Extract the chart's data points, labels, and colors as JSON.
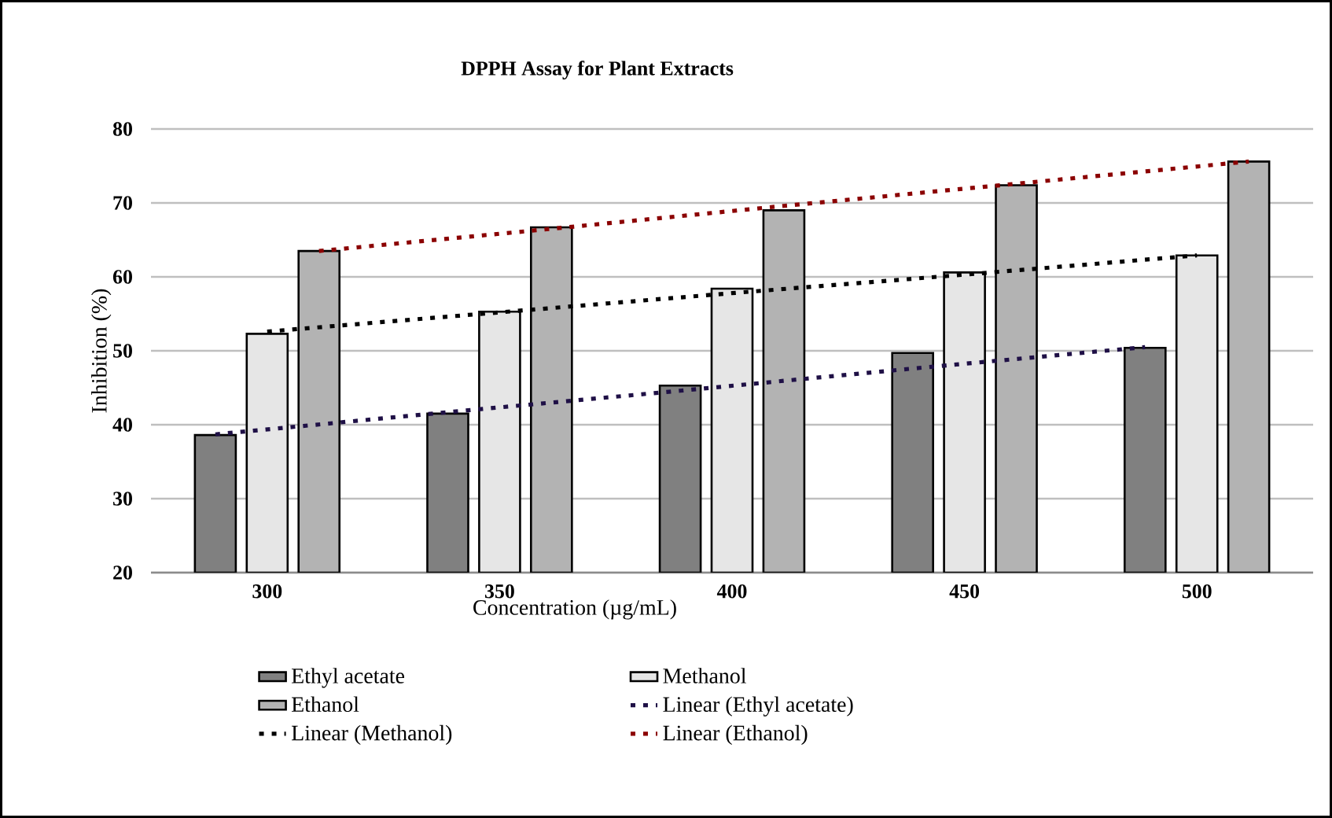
{
  "chart_data": {
    "type": "bar",
    "title": "DPPH  Assay for Plant Extracts",
    "xlabel": "Concentration (µg/mL)",
    "ylabel": "Inhibition (%)",
    "categories": [
      "300",
      "350",
      "400",
      "450",
      "500"
    ],
    "series": [
      {
        "name": "Ethyl acetate",
        "color": "#808080",
        "values": [
          38.6,
          41.5,
          45.3,
          49.7,
          50.4
        ]
      },
      {
        "name": "Methanol",
        "color": "#e6e6e6",
        "values": [
          52.3,
          55.3,
          58.4,
          60.6,
          62.9
        ]
      },
      {
        "name": "Ethanol",
        "color": "#b3b3b3",
        "values": [
          63.5,
          66.7,
          69.0,
          72.4,
          75.6
        ]
      },
      {
        "name": "Linear (Ethyl acetate)",
        "type": "line",
        "line_style": "dotted",
        "color": "#1f1046",
        "values": [
          38.7,
          41.7,
          44.6,
          47.6,
          50.5
        ]
      },
      {
        "name": "Linear (Methanol)",
        "type": "line",
        "line_style": "dotted",
        "color": "#000000",
        "values": [
          52.6,
          55.2,
          57.8,
          60.3,
          62.9
        ]
      },
      {
        "name": "Linear (Ethanol)",
        "type": "line",
        "line_style": "dotted",
        "color": "#8b0000",
        "values": [
          63.5,
          66.5,
          69.6,
          72.6,
          75.6
        ]
      }
    ],
    "ylim": [
      20,
      80
    ],
    "yticks": [
      20,
      30,
      40,
      50,
      60,
      70,
      80
    ],
    "grid": "y",
    "legend": "bottom"
  }
}
